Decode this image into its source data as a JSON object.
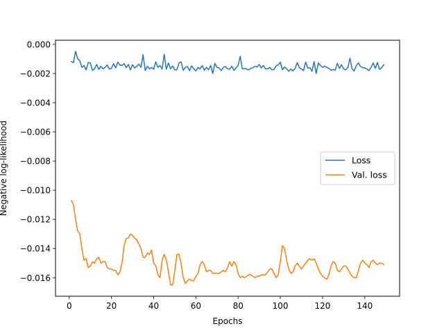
{
  "chart_data": {
    "type": "line",
    "title": "",
    "xlabel": "Epochs",
    "ylabel": "Negative log-likelihood",
    "xlim": [
      -6.5,
      156.5
    ],
    "ylim": [
      -0.01727,
      0.00028
    ],
    "xticks": [
      0,
      20,
      40,
      60,
      80,
      100,
      120,
      140
    ],
    "xtick_labels": [
      "0",
      "20",
      "40",
      "60",
      "80",
      "100",
      "120",
      "140"
    ],
    "yticks": [
      0.0,
      -0.002,
      -0.004,
      -0.006,
      -0.008,
      -0.01,
      -0.012,
      -0.014,
      -0.016
    ],
    "ytick_labels": [
      "0.000",
      "−0.002",
      "−0.004",
      "−0.006",
      "−0.008",
      "−0.010",
      "−0.012",
      "−0.014",
      "−0.016"
    ],
    "grid": false,
    "legend_position": "center-right",
    "series": [
      {
        "name": "Loss",
        "color": "#1f77b4",
        "x": [
          1,
          2,
          3,
          4,
          5,
          6,
          7,
          8,
          9,
          10,
          11,
          12,
          13,
          14,
          15,
          16,
          17,
          18,
          19,
          20,
          21,
          22,
          23,
          24,
          25,
          26,
          27,
          28,
          29,
          30,
          31,
          32,
          33,
          34,
          35,
          36,
          37,
          38,
          39,
          40,
          41,
          42,
          43,
          44,
          45,
          46,
          47,
          48,
          49,
          50,
          51,
          52,
          53,
          54,
          55,
          56,
          57,
          58,
          59,
          60,
          61,
          62,
          63,
          64,
          65,
          66,
          67,
          68,
          69,
          70,
          71,
          72,
          73,
          74,
          75,
          76,
          77,
          78,
          79,
          80,
          81,
          82,
          83,
          84,
          85,
          86,
          87,
          88,
          89,
          90,
          91,
          92,
          93,
          94,
          95,
          96,
          97,
          98,
          99,
          100,
          101,
          102,
          103,
          104,
          105,
          106,
          107,
          108,
          109,
          110,
          111,
          112,
          113,
          114,
          115,
          116,
          117,
          118,
          119,
          120,
          121,
          122,
          123,
          124,
          125,
          126,
          127,
          128,
          129,
          130,
          131,
          132,
          133,
          134,
          135,
          136,
          137,
          138,
          139,
          140,
          141,
          142,
          143,
          144,
          145,
          146,
          147,
          148,
          149
        ],
        "y": [
          -0.00118,
          -0.00125,
          -0.00048,
          -0.00098,
          -0.00112,
          -0.00158,
          -0.00145,
          -0.00175,
          -0.00125,
          -0.00128,
          -0.00178,
          -0.00168,
          -0.00138,
          -0.00172,
          -0.0015,
          -0.00168,
          -0.00158,
          -0.00142,
          -0.0017,
          -0.00165,
          -0.00132,
          -0.00162,
          -0.00122,
          -0.00142,
          -0.00145,
          -0.00132,
          -0.0016,
          -0.00138,
          -0.00175,
          -0.0014,
          -0.00162,
          -0.0015,
          -0.00135,
          -0.00158,
          -0.00072,
          -0.0018,
          -0.0015,
          -0.00168,
          -0.0016,
          -0.0017,
          -0.0012,
          -0.00158,
          -0.00145,
          -0.0017,
          -0.00068,
          -0.0017,
          -0.00128,
          -0.00168,
          -0.00148,
          -0.00175,
          -0.00175,
          -0.00128,
          -0.0012,
          -0.00178,
          -0.00158,
          -0.00152,
          -0.0018,
          -0.00148,
          -0.00168,
          -0.00182,
          -0.00158,
          -0.00168,
          -0.00145,
          -0.00178,
          -0.00158,
          -0.00175,
          -0.00145,
          -0.002,
          -0.00132,
          -0.00158,
          -0.00162,
          -0.0018,
          -0.00158,
          -0.00152,
          -0.00168,
          -0.0017,
          -0.0015,
          -0.00178,
          -0.00162,
          -0.00145,
          -0.00082,
          -0.00168,
          -0.00165,
          -0.0017,
          -0.00175,
          -0.00165,
          -0.0016,
          -0.0015,
          -0.00155,
          -0.00138,
          -0.00162,
          -0.00145,
          -0.00168,
          -0.00168,
          -0.00158,
          -0.00175,
          -0.00172,
          -0.00148,
          -0.0014,
          -0.00122,
          -0.00175,
          -0.00155,
          -0.00168,
          -0.00185,
          -0.0017,
          -0.00182,
          -0.00165,
          -0.00125,
          -0.0016,
          -0.0017,
          -0.0018,
          -0.00122,
          -0.00162,
          -0.0016,
          -0.00185,
          -0.00118,
          -0.002,
          -0.00128,
          -0.00145,
          -0.00158,
          -0.0015,
          -0.00158,
          -0.00165,
          -0.00178,
          -0.00172,
          -0.00178,
          -0.0013,
          -0.00165,
          -0.0014,
          -0.00168,
          -0.00175,
          -0.00158,
          -0.00095,
          -0.00168,
          -0.00182,
          -0.00145,
          -0.00128,
          -0.00152,
          -0.0016,
          -0.00162,
          -0.0017,
          -0.0018,
          -0.00158,
          -0.00128,
          -0.00165,
          -0.00125,
          -0.00172,
          -0.0016,
          -0.0014
        ]
      },
      {
        "name": "Val. loss",
        "color": "#ff7f0e",
        "x": [
          1,
          2,
          3,
          4,
          5,
          6,
          7,
          8,
          9,
          10,
          11,
          12,
          13,
          14,
          15,
          16,
          17,
          18,
          19,
          20,
          21,
          22,
          23,
          24,
          25,
          26,
          27,
          28,
          29,
          30,
          31,
          32,
          33,
          34,
          35,
          36,
          37,
          38,
          39,
          40,
          41,
          42,
          43,
          44,
          45,
          46,
          47,
          48,
          49,
          50,
          51,
          52,
          53,
          54,
          55,
          56,
          57,
          58,
          59,
          60,
          61,
          62,
          63,
          64,
          65,
          66,
          67,
          68,
          69,
          70,
          71,
          72,
          73,
          74,
          75,
          76,
          77,
          78,
          79,
          80,
          81,
          82,
          83,
          84,
          85,
          86,
          87,
          88,
          89,
          90,
          91,
          92,
          93,
          94,
          95,
          96,
          97,
          98,
          99,
          100,
          101,
          102,
          103,
          104,
          105,
          106,
          107,
          108,
          109,
          110,
          111,
          112,
          113,
          114,
          115,
          116,
          117,
          118,
          119,
          120,
          121,
          122,
          123,
          124,
          125,
          126,
          127,
          128,
          129,
          130,
          131,
          132,
          133,
          134,
          135,
          136,
          137,
          138,
          139,
          140,
          141,
          142,
          143,
          144,
          145,
          146,
          147,
          148,
          149
        ],
        "y": [
          -0.0107,
          -0.011,
          -0.012,
          -0.0128,
          -0.013,
          -0.014,
          -0.0148,
          -0.0147,
          -0.0153,
          -0.0152,
          -0.0149,
          -0.015,
          -0.0147,
          -0.0146,
          -0.015,
          -0.0149,
          -0.0149,
          -0.0153,
          -0.0154,
          -0.0154,
          -0.0155,
          -0.0155,
          -0.0158,
          -0.0156,
          -0.015,
          -0.0138,
          -0.0133,
          -0.0133,
          -0.013,
          -0.0131,
          -0.0133,
          -0.0134,
          -0.0137,
          -0.014,
          -0.0146,
          -0.0146,
          -0.0143,
          -0.0144,
          -0.0141,
          -0.015,
          -0.0152,
          -0.0158,
          -0.016,
          -0.0148,
          -0.0144,
          -0.0148,
          -0.0156,
          -0.0165,
          -0.0165,
          -0.0155,
          -0.0144,
          -0.0144,
          -0.015,
          -0.016,
          -0.0164,
          -0.0162,
          -0.0161,
          -0.0162,
          -0.0162,
          -0.0159,
          -0.0157,
          -0.0151,
          -0.0149,
          -0.0151,
          -0.0156,
          -0.0155,
          -0.0155,
          -0.0157,
          -0.0157,
          -0.0157,
          -0.0157,
          -0.0156,
          -0.0155,
          -0.0156,
          -0.0153,
          -0.0149,
          -0.0152,
          -0.0149,
          -0.0151,
          -0.0157,
          -0.016,
          -0.0159,
          -0.016,
          -0.0159,
          -0.0158,
          -0.0158,
          -0.0159,
          -0.016,
          -0.0159,
          -0.0159,
          -0.0158,
          -0.0158,
          -0.0158,
          -0.0156,
          -0.0154,
          -0.0154,
          -0.0157,
          -0.016,
          -0.0158,
          -0.0149,
          -0.0138,
          -0.014,
          -0.0148,
          -0.0154,
          -0.0157,
          -0.0156,
          -0.0152,
          -0.015,
          -0.0152,
          -0.0154,
          -0.0152,
          -0.015,
          -0.0148,
          -0.0147,
          -0.0148,
          -0.0147,
          -0.015,
          -0.0154,
          -0.0157,
          -0.0159,
          -0.016,
          -0.0161,
          -0.0158,
          -0.0152,
          -0.0149,
          -0.015,
          -0.0155,
          -0.0156,
          -0.0154,
          -0.0152,
          -0.0152,
          -0.0154,
          -0.0157,
          -0.0159,
          -0.016,
          -0.016,
          -0.0155,
          -0.015,
          -0.0148,
          -0.015,
          -0.0151,
          -0.0153,
          -0.0149,
          -0.0148,
          -0.015,
          -0.0151,
          -0.015,
          -0.015,
          -0.0151
        ]
      }
    ]
  }
}
